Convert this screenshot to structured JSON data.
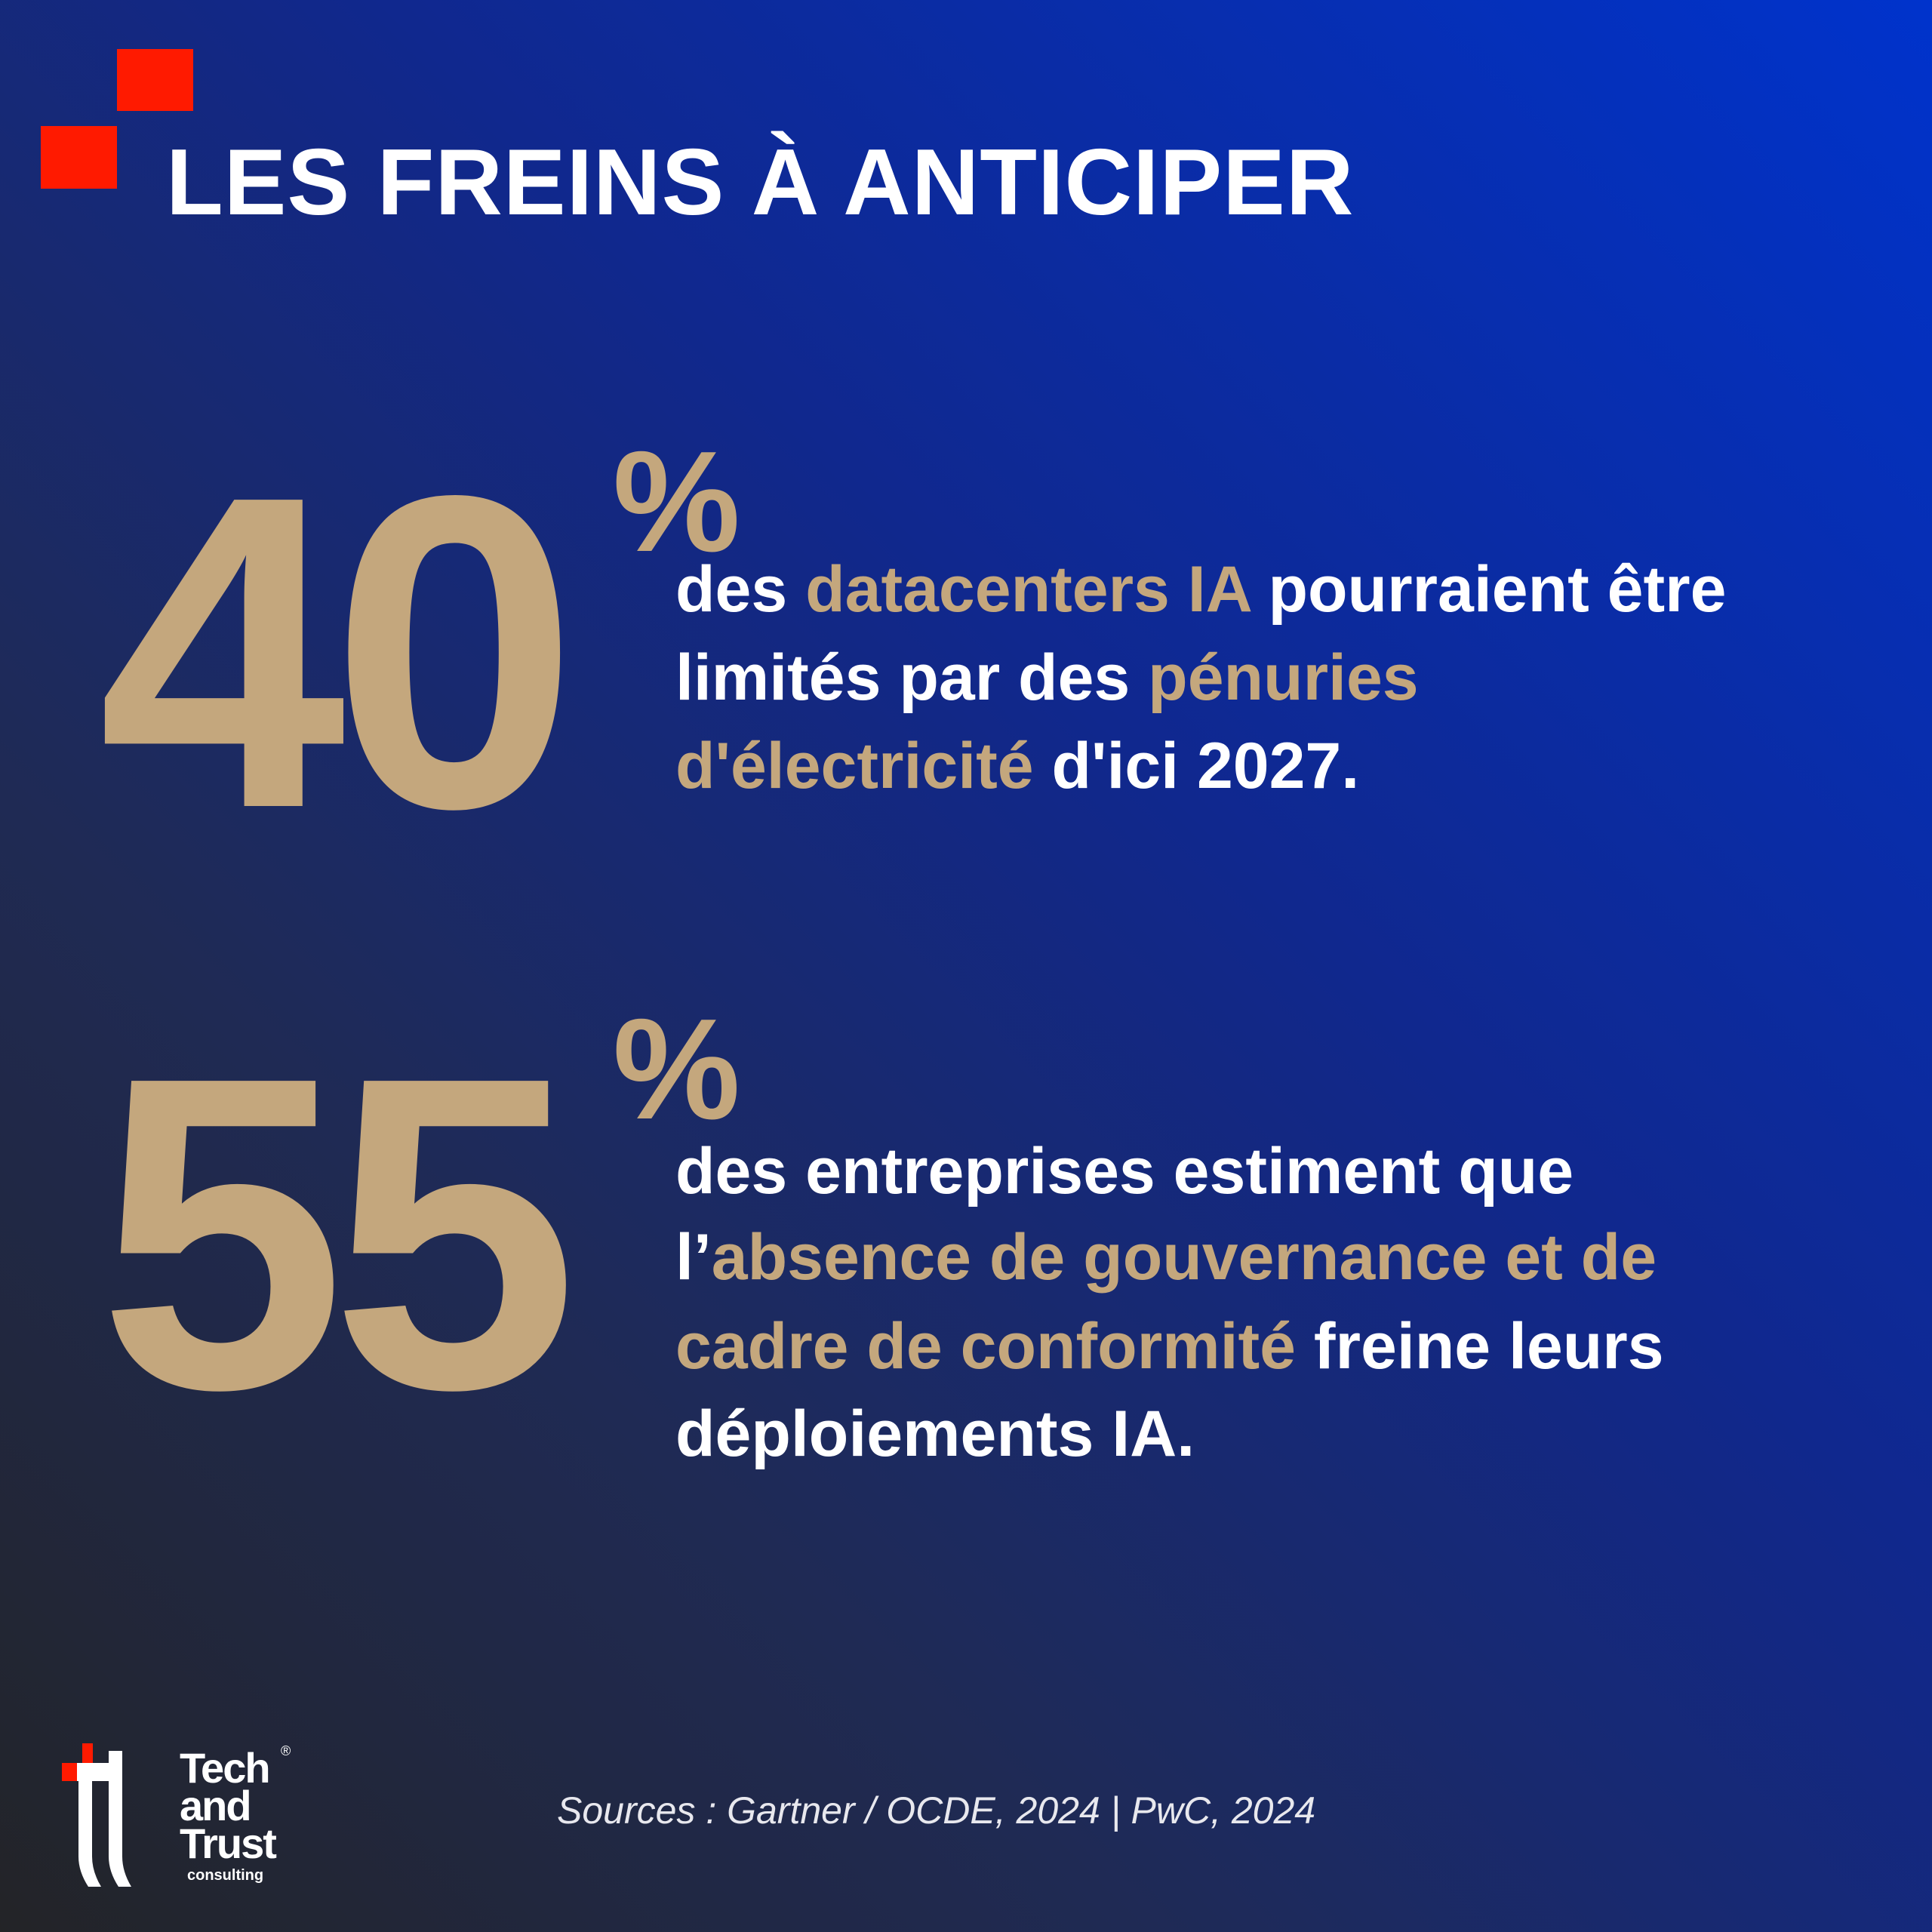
{
  "header": {
    "title": "LES FREINS À ANTICIPER"
  },
  "colors": {
    "accent_red": "#ff1a00",
    "gold": "#c4a77d",
    "background_top": "#0033cc",
    "background_bottom": "#232427"
  },
  "stats": [
    {
      "value": "40",
      "unit": "%",
      "lines": [
        [
          {
            "text": "des "
          },
          {
            "text": "datacenters IA"
          },
          {
            "text": " pourraient être"
          }
        ],
        [
          {
            "text": "limités par des "
          },
          {
            "text": "pénuries"
          }
        ],
        [
          {
            "text": "d'électricité"
          },
          {
            "text": " d'ici 2027."
          }
        ]
      ]
    },
    {
      "value": "55",
      "unit": "%",
      "lines": [
        [
          {
            "text": "des entreprises estiment que"
          }
        ],
        [
          {
            "text": "l’"
          },
          {
            "text": "absence de gouvernance et de"
          }
        ],
        [
          {
            "text": "cadre de conformité"
          },
          {
            "text": " freine leurs"
          }
        ],
        [
          {
            "text": "déploiements IA."
          }
        ]
      ]
    }
  ],
  "footer": {
    "sources": "Sources : Gartner / OCDE, 2024 |  PwC, 2024",
    "logo": {
      "line1": "Tech",
      "line2": "and",
      "line3": "Trust",
      "line4": "consulting",
      "mark": "®"
    }
  }
}
